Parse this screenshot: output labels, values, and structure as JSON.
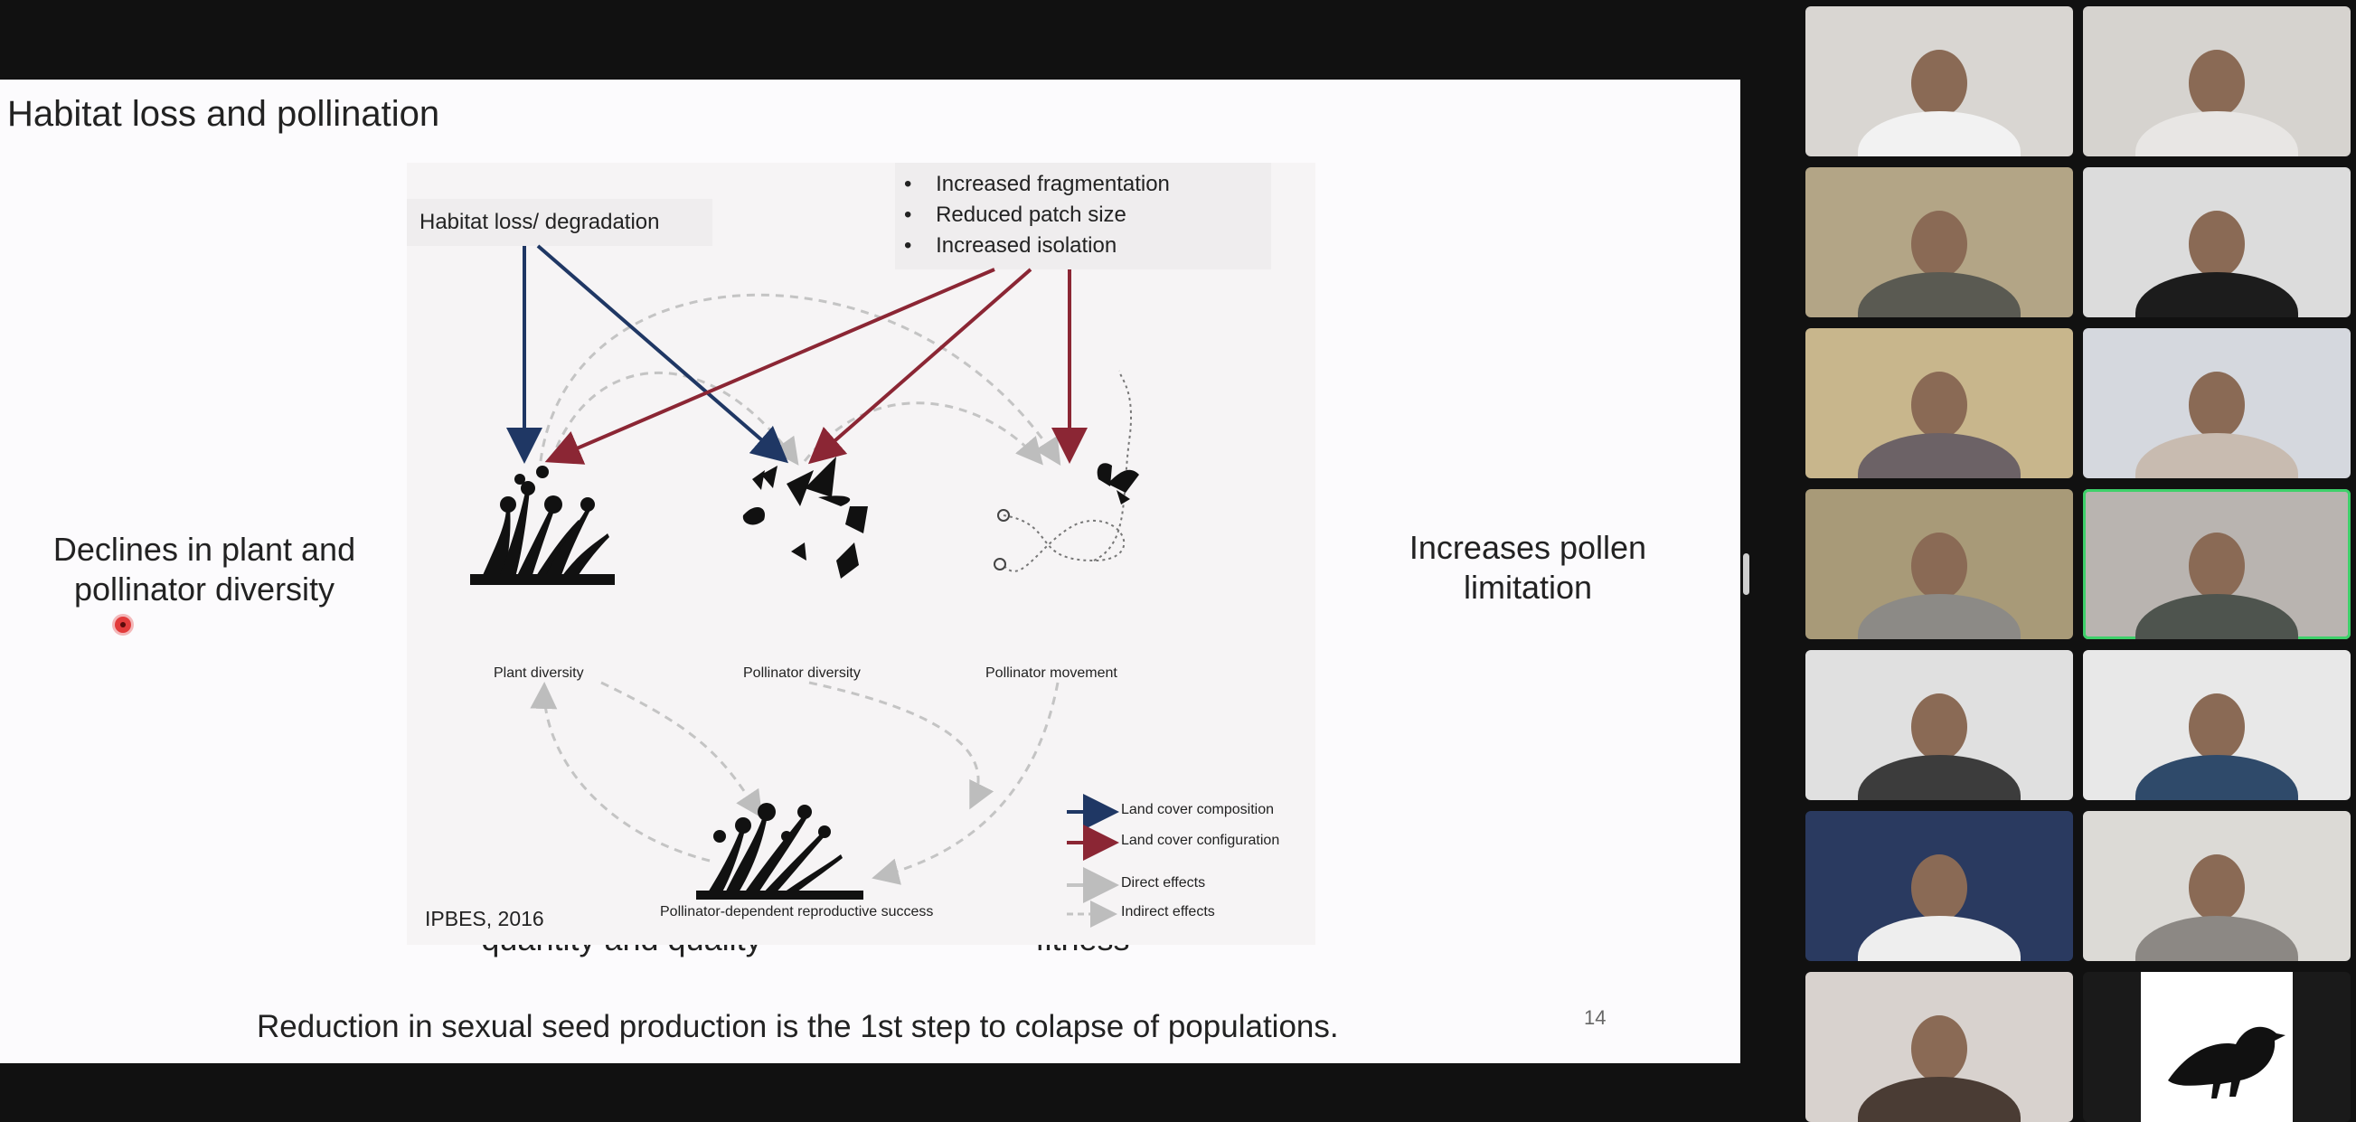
{
  "slide": {
    "title": "Habitat loss and pollination",
    "left_text": "Declines in plant and pollinator diversity",
    "right_text": "Increases pollen limitation",
    "bottom_left_text": "Decreases seed quantity and quality",
    "bottom_right_text": "Reduces plant fitness",
    "footer": "Reduction in sexual seed production is the 1st step to colapse of populations.",
    "page_number": "14"
  },
  "figure": {
    "habitat_box": "Habitat loss/ degradation",
    "bullets": [
      "Increased fragmentation",
      "Reduced patch size",
      "Increased isolation"
    ],
    "plant_label": "Plant diversity",
    "pollinator_label": "Pollinator diversity",
    "movement_label": "Pollinator movement",
    "success_label": "Pollinator-dependent reproductive success",
    "citation": "IPBES, 2016",
    "legend": [
      {
        "label": "Land cover composition",
        "color": "#1f3764",
        "style": "solid-dark"
      },
      {
        "label": "Land cover configuration",
        "color": "#8b2634",
        "style": "solid-red"
      },
      {
        "label": "Direct effects",
        "color": "#bdbdbd",
        "style": "solid-light"
      },
      {
        "label": "Indirect effects",
        "color": "#bdbdbd",
        "style": "dashed"
      }
    ]
  },
  "participants": [
    {
      "active": false,
      "bg": "#d9d6d2",
      "shirt": "#f2f2f2"
    },
    {
      "active": false,
      "bg": "#d6d3cf",
      "shirt": "#e8e6e4"
    },
    {
      "active": false,
      "bg": "#b3a586",
      "shirt": "#5a5a52"
    },
    {
      "active": false,
      "bg": "#dcdcdc",
      "shirt": "#1c1c1c"
    },
    {
      "active": false,
      "bg": "#c8b68c",
      "shirt": "#6c6266"
    },
    {
      "active": false,
      "bg": "#d5d8de",
      "shirt": "#c8bbb0"
    },
    {
      "active": false,
      "bg": "#a89a78",
      "shirt": "#8c8a86"
    },
    {
      "active": true,
      "bg": "#b9b4b0",
      "shirt": "#4e544e"
    },
    {
      "active": false,
      "bg": "#e0e0e0",
      "shirt": "#3c3c3c"
    },
    {
      "active": false,
      "bg": "#e8e8e8",
      "shirt": "#2f4a6a"
    },
    {
      "active": false,
      "bg": "#2a3a60",
      "shirt": "#eeeeee"
    },
    {
      "active": false,
      "bg": "#dcdad6",
      "shirt": "#8c8884"
    },
    {
      "active": false,
      "bg": "#d8d2ce",
      "shirt": "#4a3c34"
    },
    {
      "active": false,
      "bg": "#1a1a1a",
      "shirt": "#000000"
    }
  ],
  "colors": {
    "composition": "#1f3764",
    "configuration": "#8b2634",
    "active_speaker": "#3ed06a"
  }
}
